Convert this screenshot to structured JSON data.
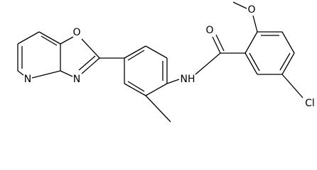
{
  "atoms": {
    "methoxy_o": "O",
    "carbonyl_o": "O",
    "amide_n": "NH",
    "chloro": "Cl",
    "oxazole_o": "O",
    "oxazole_n": "N",
    "pyridine_n": "N"
  }
}
